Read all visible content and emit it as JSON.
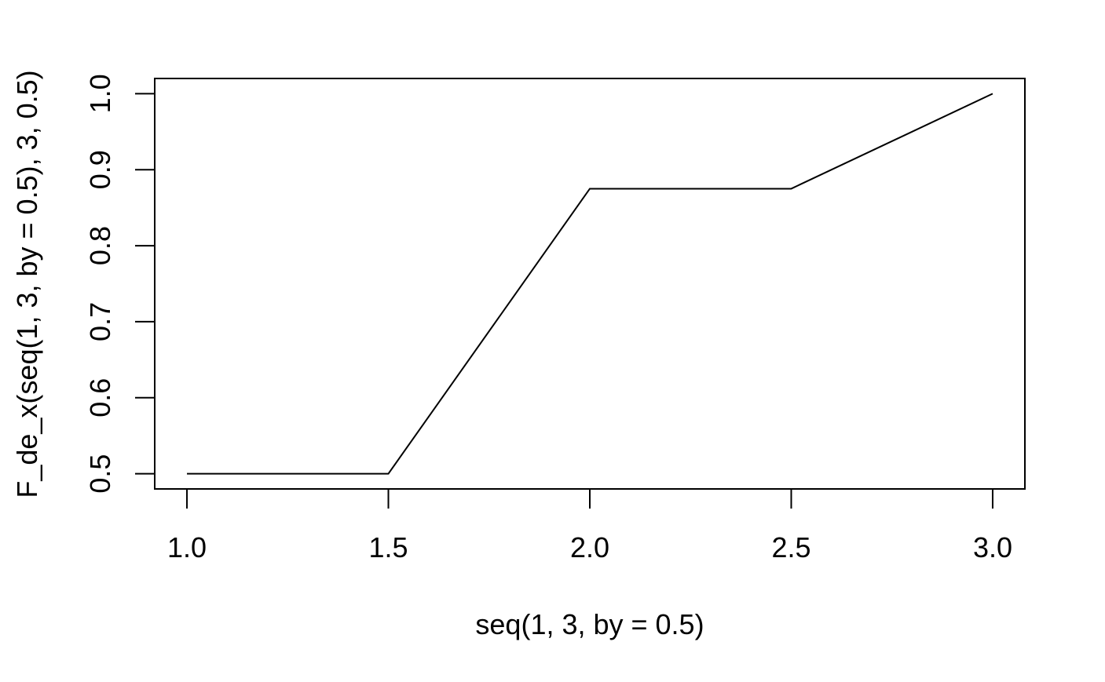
{
  "chart_data": {
    "type": "line",
    "x": [
      1.0,
      1.5,
      2.0,
      2.5,
      3.0
    ],
    "y": [
      0.5,
      0.5,
      0.875,
      0.875,
      1.0
    ],
    "xlabel": "seq(1, 3, by = 0.5)",
    "ylabel": "F_de_x(seq(1, 3, by = 0.5), 3, 0.5)",
    "xlim": [
      0.92,
      3.08
    ],
    "ylim": [
      0.48,
      1.02
    ],
    "xticks": [
      "1.0",
      "1.5",
      "2.0",
      "2.5",
      "3.0"
    ],
    "yticks": [
      "0.5",
      "0.6",
      "0.7",
      "0.8",
      "0.9",
      "1.0"
    ],
    "grid": false,
    "line_color": "#000000"
  }
}
